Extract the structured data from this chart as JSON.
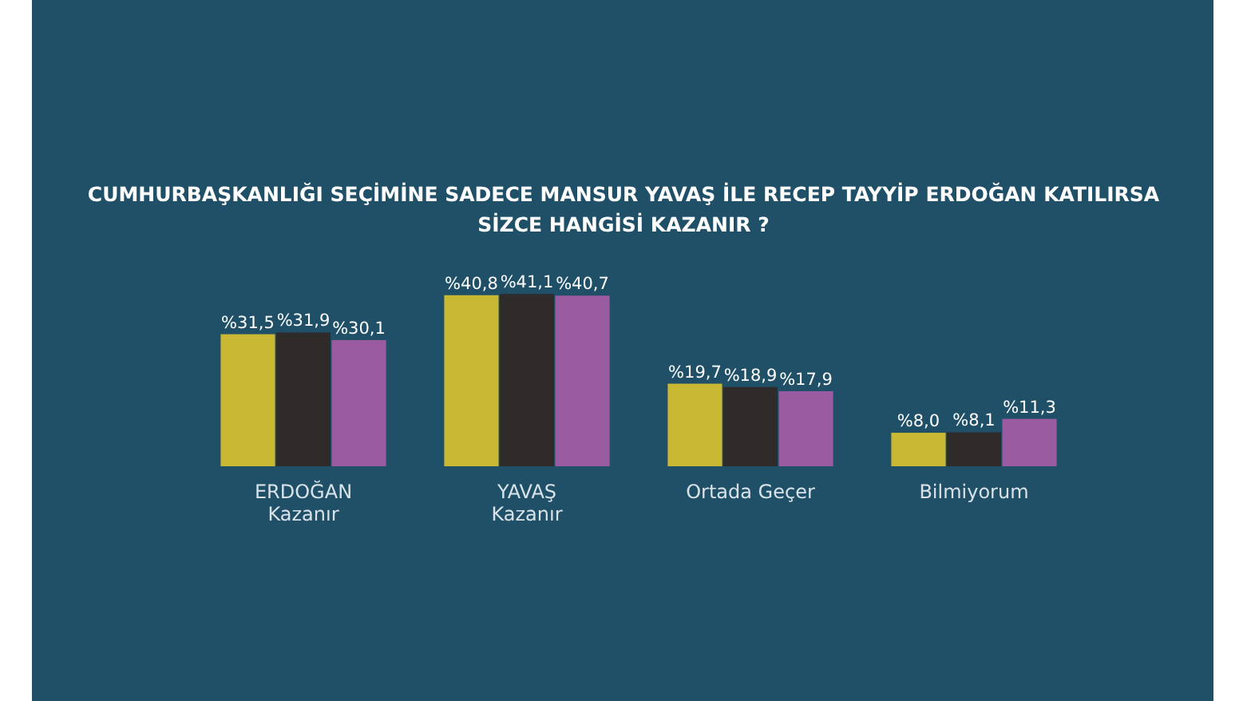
{
  "chart_data": {
    "type": "bar",
    "title": "CUMHURBAŞKANLIĞI SEÇİMİNE SADECE MANSUR YAVAŞ İLE RECEP TAYYİP ERDOĞAN KATILIRSA\nSİZCE HANGİSİ KAZANIR ?",
    "categories": [
      "ERDOĞAN\nKazanır",
      "YAVAŞ\nKazanır",
      "Ortada Geçer",
      "Bilmiyorum"
    ],
    "series": [
      {
        "color": "#c9b834",
        "values": [
          31.5,
          40.8,
          19.7,
          8.0
        ],
        "value_labels": [
          "%31,5",
          "%40,8",
          "%19,7",
          "%8,0"
        ]
      },
      {
        "color": "#2f2b2b",
        "values": [
          31.9,
          41.1,
          18.9,
          8.1
        ],
        "value_labels": [
          "%31,9",
          "%41,1",
          "%18,9",
          "%8,1"
        ]
      },
      {
        "color": "#9b5ba1",
        "values": [
          30.1,
          40.7,
          17.9,
          11.3
        ],
        "value_labels": [
          "%30,1",
          "%40,7",
          "%17,9",
          "%11,3"
        ]
      }
    ]
  }
}
